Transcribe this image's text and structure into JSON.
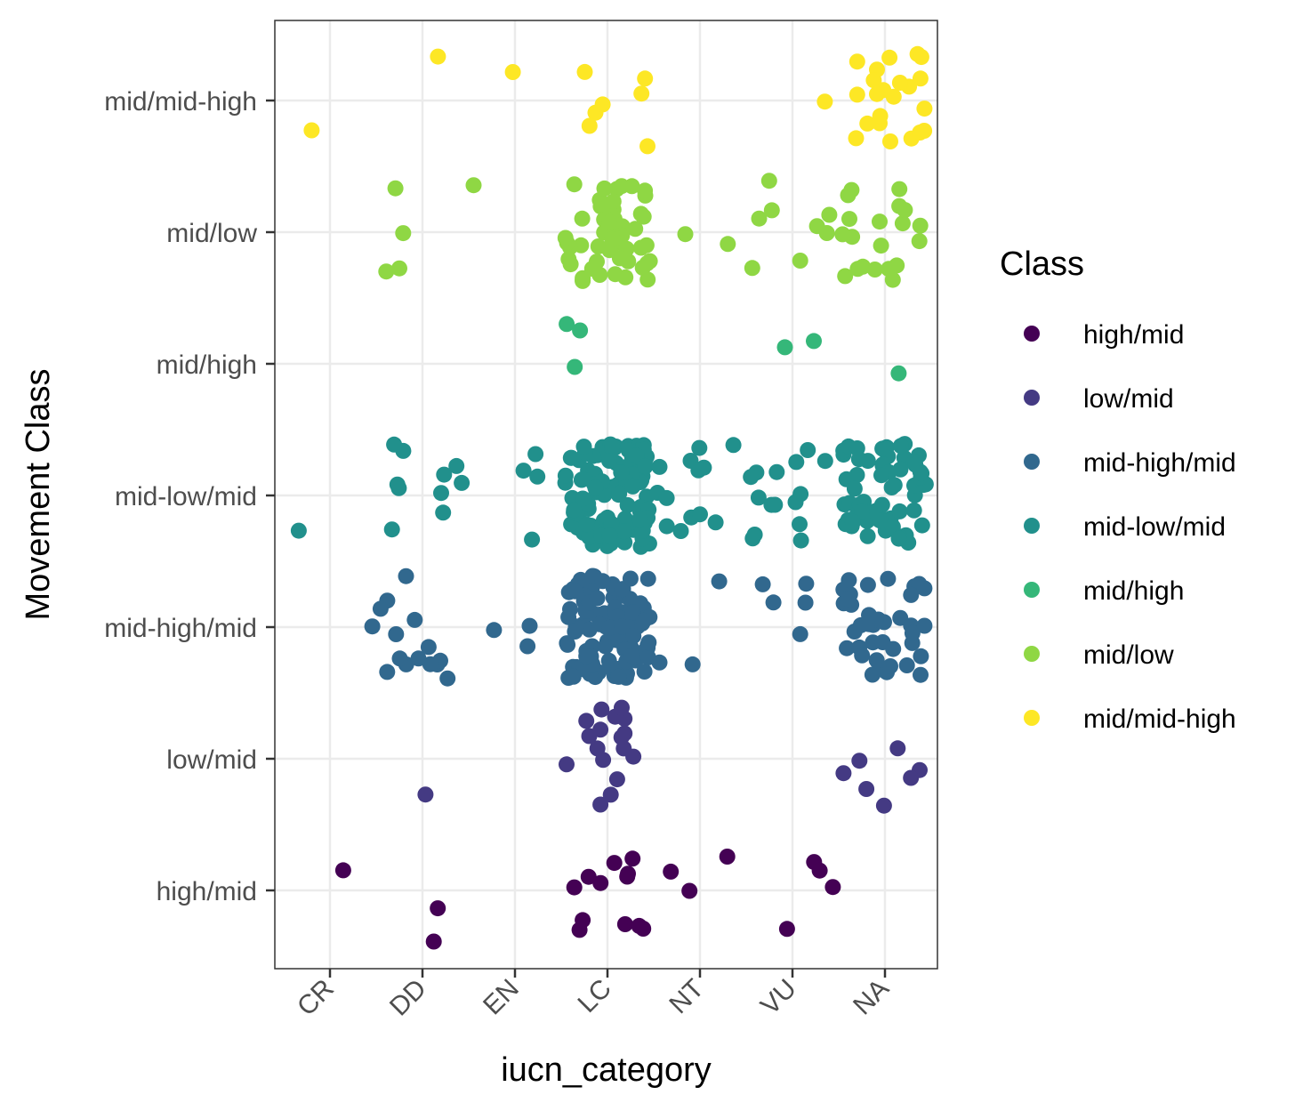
{
  "chart_data": {
    "type": "scatter",
    "jitter": true,
    "xlabel": "iucn_category",
    "ylabel": "Movement Class",
    "x_categories": [
      "CR",
      "DD",
      "EN",
      "LC",
      "NT",
      "VU",
      "NA"
    ],
    "y_categories": [
      "high/mid",
      "low/mid",
      "mid-high/mid",
      "mid-low/mid",
      "mid/high",
      "mid/low",
      "mid/mid-high"
    ],
    "grid": true,
    "legend": {
      "title": "Class",
      "position": "right",
      "entries": [
        {
          "label": "high/mid",
          "color": "#440154"
        },
        {
          "label": "low/mid",
          "color": "#443A83"
        },
        {
          "label": "mid-high/mid",
          "color": "#31688E"
        },
        {
          "label": "mid-low/mid",
          "color": "#21908C"
        },
        {
          "label": "mid/high",
          "color": "#35B779"
        },
        {
          "label": "mid/low",
          "color": "#8FD744"
        },
        {
          "label": "mid/mid-high",
          "color": "#FDE725"
        }
      ]
    },
    "series": [
      {
        "name": "high/mid",
        "color": "#440154",
        "points": [
          {
            "x": "CR",
            "count": 1
          },
          {
            "x": "DD",
            "count": 2
          },
          {
            "x": "LC",
            "count": 12
          },
          {
            "x": "NT",
            "count": 3
          },
          {
            "x": "VU",
            "count": 4
          }
        ]
      },
      {
        "name": "low/mid",
        "color": "#443A83",
        "points": [
          {
            "x": "DD",
            "count": 1
          },
          {
            "x": "LC",
            "count": 17
          },
          {
            "x": "NA",
            "count": 7
          }
        ]
      },
      {
        "name": "mid-high/mid",
        "color": "#31688E",
        "points": [
          {
            "x": "CR",
            "count": 1
          },
          {
            "x": "DD",
            "count": 14
          },
          {
            "x": "EN",
            "count": 3
          },
          {
            "x": "LC",
            "count": 110
          },
          {
            "x": "NT",
            "count": 3
          },
          {
            "x": "VU",
            "count": 5
          },
          {
            "x": "NA",
            "count": 40
          }
        ]
      },
      {
        "name": "mid-low/mid",
        "color": "#21908C",
        "points": [
          {
            "x": "CR",
            "count": 1
          },
          {
            "x": "DD",
            "count": 10
          },
          {
            "x": "EN",
            "count": 4
          },
          {
            "x": "LC",
            "count": 110
          },
          {
            "x": "NT",
            "count": 13
          },
          {
            "x": "VU",
            "count": 15
          },
          {
            "x": "NA",
            "count": 60
          }
        ]
      },
      {
        "name": "mid/high",
        "color": "#35B779",
        "points": [
          {
            "x": "LC",
            "count": 3
          },
          {
            "x": "VU",
            "count": 2
          },
          {
            "x": "NA",
            "count": 1
          }
        ]
      },
      {
        "name": "mid/low",
        "color": "#8FD744",
        "points": [
          {
            "x": "DD",
            "count": 4
          },
          {
            "x": "EN",
            "count": 1
          },
          {
            "x": "LC",
            "count": 55
          },
          {
            "x": "NT",
            "count": 2
          },
          {
            "x": "VU",
            "count": 8
          },
          {
            "x": "NA",
            "count": 20
          }
        ]
      },
      {
        "name": "mid/mid-high",
        "color": "#FDE725",
        "points": [
          {
            "x": "CR",
            "count": 1
          },
          {
            "x": "DD",
            "count": 1
          },
          {
            "x": "EN",
            "count": 1
          },
          {
            "x": "LC",
            "count": 7
          },
          {
            "x": "VU",
            "count": 1
          },
          {
            "x": "NA",
            "count": 22
          }
        ]
      }
    ]
  }
}
